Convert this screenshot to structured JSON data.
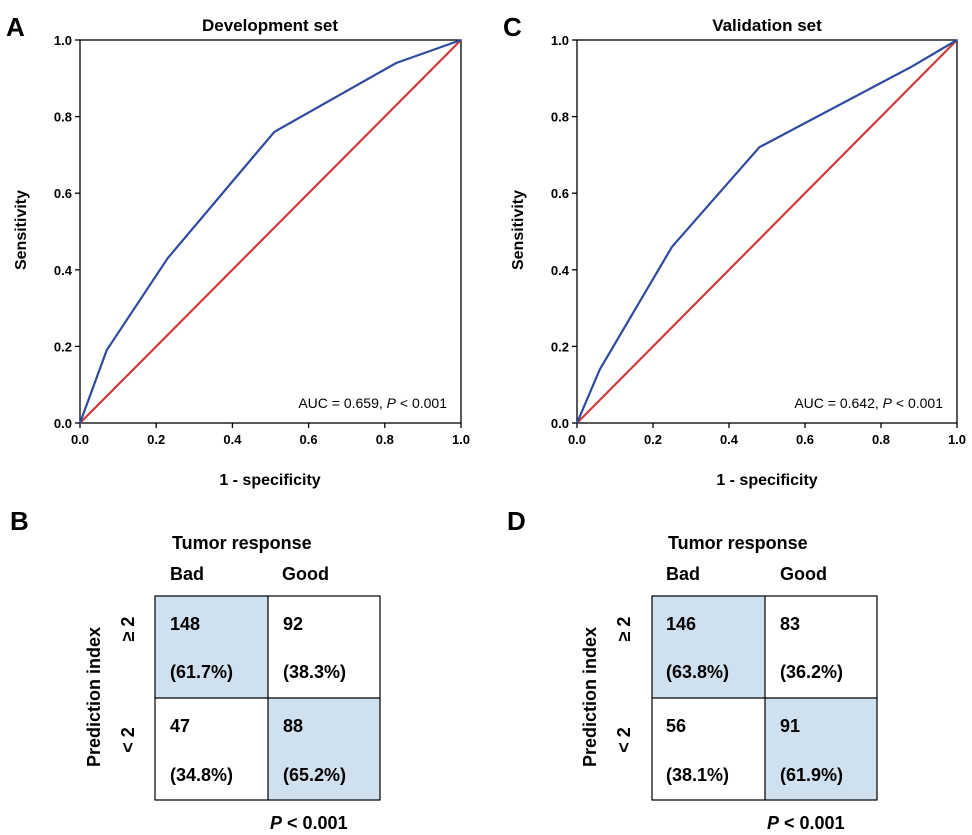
{
  "chart_data": [
    {
      "type": "line",
      "panel": "A",
      "title": "Development set",
      "xlabel": "1 - specificity",
      "ylabel": "Sensitivity",
      "xlim": [
        0,
        1
      ],
      "ylim": [
        0,
        1
      ],
      "xticks": [
        "0.0",
        "0.2",
        "0.4",
        "0.6",
        "0.8",
        "1.0"
      ],
      "yticks": [
        "0.0",
        "0.2",
        "0.4",
        "0.6",
        "0.8",
        "1.0"
      ],
      "grid": false,
      "series": [
        {
          "color": "#2e4a9e",
          "x": [
            0,
            0.07,
            0.23,
            0.51,
            0.83,
            1.0
          ],
          "y": [
            0,
            0.19,
            0.43,
            0.76,
            0.94,
            1.0
          ]
        },
        {
          "color": "#d03a3a",
          "x": [
            0,
            1
          ],
          "y": [
            0,
            1
          ]
        }
      ],
      "annotation": {
        "prefix": "AUC = 0.659, ",
        "p": "P",
        "suffix": " < 0.001"
      }
    },
    {
      "type": "line",
      "panel": "C",
      "title": "Validation set",
      "xlabel": "1 - specificity",
      "ylabel": "Sensitivity",
      "xlim": [
        0,
        1
      ],
      "ylim": [
        0,
        1
      ],
      "xticks": [
        "0.0",
        "0.2",
        "0.4",
        "0.6",
        "0.8",
        "1.0"
      ],
      "yticks": [
        "0.0",
        "0.2",
        "0.4",
        "0.6",
        "0.8",
        "1.0"
      ],
      "grid": false,
      "series": [
        {
          "color": "#2e4a9e",
          "x": [
            0,
            0.06,
            0.25,
            0.48,
            0.88,
            1.0
          ],
          "y": [
            0,
            0.14,
            0.46,
            0.72,
            0.93,
            1.0
          ]
        },
        {
          "color": "#d03a3a",
          "x": [
            0,
            1
          ],
          "y": [
            0,
            1
          ]
        }
      ],
      "annotation": {
        "prefix": "AUC = 0.642, ",
        "p": "P",
        "suffix": " < 0.001"
      }
    },
    {
      "type": "table",
      "panel": "B",
      "header": "Tumor response",
      "columns": [
        "Bad",
        "Good"
      ],
      "row_axis_label": "Prediction index",
      "rows": [
        "≥ 2",
        "< 2"
      ],
      "cells": [
        [
          {
            "n": "148",
            "pct": "(61.7%)",
            "highlight": true
          },
          {
            "n": "92",
            "pct": "(38.3%)",
            "highlight": false
          }
        ],
        [
          {
            "n": "47",
            "pct": "(34.8%)",
            "highlight": false
          },
          {
            "n": "88",
            "pct": "(65.2%)",
            "highlight": true
          }
        ]
      ],
      "pvalue": {
        "p": "P",
        "suffix": " < 0.001"
      }
    },
    {
      "type": "table",
      "panel": "D",
      "header": "Tumor response",
      "columns": [
        "Bad",
        "Good"
      ],
      "row_axis_label": "Prediction index",
      "rows": [
        "≥ 2",
        "< 2"
      ],
      "cells": [
        [
          {
            "n": "146",
            "pct": "(63.8%)",
            "highlight": true
          },
          {
            "n": "83",
            "pct": "(36.2%)",
            "highlight": false
          }
        ],
        [
          {
            "n": "56",
            "pct": "(38.1%)",
            "highlight": false
          },
          {
            "n": "91",
            "pct": "(61.9%)",
            "highlight": true
          }
        ]
      ],
      "pvalue": {
        "p": "P",
        "suffix": " < 0.001"
      }
    }
  ],
  "colors": {
    "roc": "#2e4a9e",
    "reference": "#d03a3a",
    "highlight_cell": "#cfe0ee",
    "axis": "#000000"
  }
}
